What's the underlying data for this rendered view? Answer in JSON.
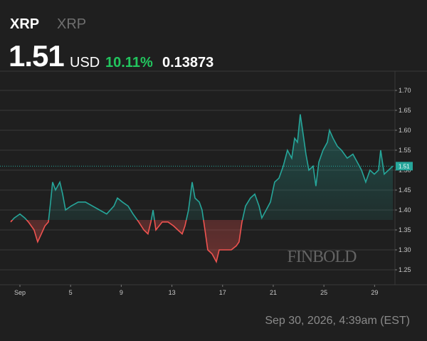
{
  "header": {
    "symbol": "XRP",
    "name": "XRP",
    "price": "1.51",
    "currency": "USD",
    "change_pct": {
      "value": 10.11,
      "label": "10.11%"
    },
    "change": "0.13873"
  },
  "footer": "Sep 30, 2026, 4:39am (EST)",
  "chart_data": {
    "type": "baseline-line",
    "watermark": "FINBOLD",
    "x": [
      0.27,
      0.55,
      1.0,
      1.39,
      1.67,
      2.12,
      2.4,
      2.69,
      2.97,
      3.25,
      3.42,
      3.58,
      3.81,
      4.15,
      4.37,
      4.6,
      5.04,
      5.61,
      6.17,
      6.73,
      7.29,
      7.85,
      8.42,
      8.7,
      9.09,
      9.54,
      9.93,
      10.38,
      10.78,
      11.11,
      11.34,
      11.51,
      11.73,
      12.24,
      12.69,
      13.13,
      13.47,
      13.81,
      14.03,
      14.31,
      14.6,
      14.82,
      15.16,
      15.38,
      15.61,
      15.83,
      16.17,
      16.51,
      16.73,
      17.12,
      17.69,
      18.08,
      18.3,
      18.53,
      18.81,
      19.2,
      19.54,
      19.88,
      20.1,
      20.44,
      20.78,
      21.11,
      21.45,
      21.79,
      22.12,
      22.46,
      22.69,
      22.91,
      23.13,
      23.36,
      23.58,
      23.81,
      24.15,
      24.37,
      24.6,
      24.93,
      25.27,
      25.44,
      25.72,
      26.06,
      26.39,
      26.84,
      27.29,
      27.63,
      27.97,
      28.3,
      28.64,
      28.98,
      29.31,
      29.48,
      29.76,
      30.1,
      30.44
    ],
    "values": [
      1.37,
      1.38,
      1.39,
      1.38,
      1.37,
      1.35,
      1.32,
      1.34,
      1.36,
      1.37,
      1.42,
      1.47,
      1.45,
      1.47,
      1.44,
      1.4,
      1.41,
      1.42,
      1.42,
      1.41,
      1.4,
      1.39,
      1.41,
      1.43,
      1.42,
      1.41,
      1.39,
      1.37,
      1.35,
      1.34,
      1.37,
      1.4,
      1.35,
      1.37,
      1.37,
      1.36,
      1.35,
      1.34,
      1.36,
      1.4,
      1.47,
      1.43,
      1.42,
      1.4,
      1.35,
      1.3,
      1.29,
      1.27,
      1.3,
      1.3,
      1.3,
      1.31,
      1.32,
      1.37,
      1.41,
      1.43,
      1.44,
      1.41,
      1.38,
      1.4,
      1.42,
      1.47,
      1.48,
      1.51,
      1.55,
      1.53,
      1.58,
      1.57,
      1.64,
      1.59,
      1.54,
      1.5,
      1.51,
      1.46,
      1.52,
      1.55,
      1.57,
      1.6,
      1.58,
      1.56,
      1.55,
      1.53,
      1.54,
      1.52,
      1.5,
      1.47,
      1.5,
      1.49,
      1.5,
      1.55,
      1.49,
      1.5,
      1.51
    ],
    "baseline": 1.375,
    "up_color": "#26a69a",
    "down_color": "#ef5350",
    "last_price": 1.51,
    "xlim": [
      0.27,
      30.61
    ],
    "xticks": [
      {
        "value": 1,
        "label": "Sep"
      },
      5,
      9,
      13,
      17,
      21,
      25,
      29
    ],
    "ylim": [
      1.2125,
      1.7482
    ],
    "yticks": [
      1.25,
      {
        "value": 1.3,
        "label": "1.30"
      },
      1.35,
      {
        "value": 1.4,
        "label": "1.40"
      },
      1.45,
      {
        "value": 1.5,
        "label": "1.50"
      },
      1.55,
      {
        "value": 1.6,
        "label": "1.60"
      },
      1.65,
      {
        "value": 1.7,
        "label": "1.70"
      }
    ],
    "grid": true
  }
}
